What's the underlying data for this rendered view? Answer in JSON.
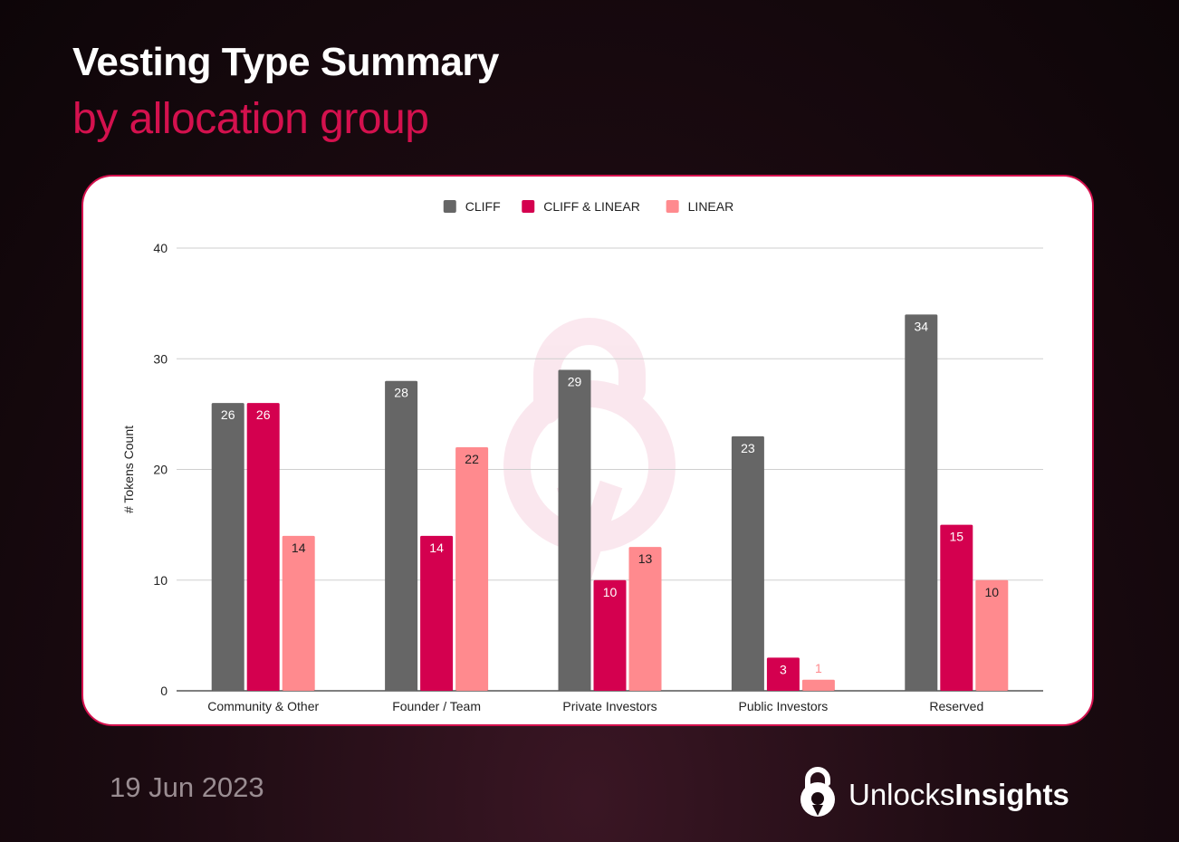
{
  "header": {
    "title": "Vesting Type Summary",
    "subtitle": "by allocation group"
  },
  "footer": {
    "date": "19 Jun 2023",
    "brand_light": "Unlocks",
    "brand_bold": "Insights"
  },
  "colors": {
    "accent": "#d4114e",
    "cliff": "#666666",
    "cliff_linear": "#d4004f",
    "linear": "#ff8a8e"
  },
  "chart_data": {
    "type": "bar",
    "title": "",
    "xlabel": "",
    "ylabel": "# Tokens Count",
    "ylim": [
      0,
      40
    ],
    "yticks": [
      0,
      10,
      20,
      30,
      40
    ],
    "grid": true,
    "legend_position": "top-center",
    "categories": [
      "Community & Other",
      "Founder / Team",
      "Private Investors",
      "Public Investors",
      "Reserved"
    ],
    "series": [
      {
        "name": "CLIFF",
        "color": "#666666",
        "label_color": "#ffffff",
        "values": [
          26,
          28,
          29,
          23,
          34
        ]
      },
      {
        "name": "CLIFF & LINEAR",
        "color": "#d4004f",
        "label_color": "#ffffff",
        "values": [
          26,
          14,
          10,
          3,
          15
        ]
      },
      {
        "name": "LINEAR",
        "color": "#ff8a8e",
        "label_color": "#222222",
        "values": [
          14,
          22,
          13,
          1,
          10
        ]
      }
    ]
  }
}
